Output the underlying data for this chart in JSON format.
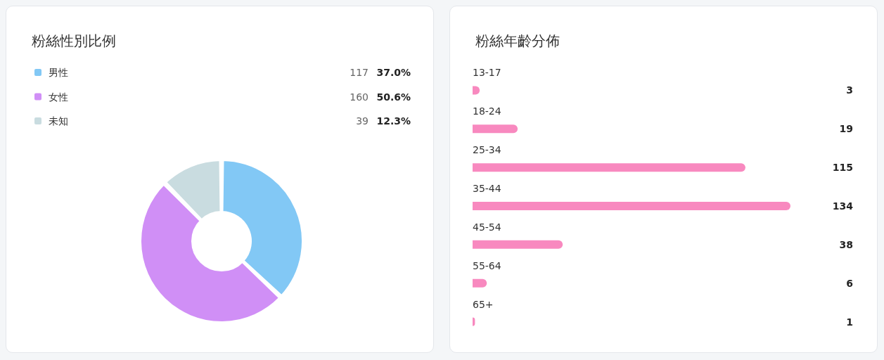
{
  "chart_data": [
    {
      "type": "donut",
      "title": "粉絲性別比例",
      "categories": [
        "男性",
        "女性",
        "未知"
      ],
      "values": [
        117,
        160,
        39
      ],
      "colors": [
        "#82c8f5",
        "#d08ff6",
        "#c9dce0"
      ],
      "data_labels": true,
      "annotations": [
        "37.0%",
        "50.6%",
        "12.3%"
      ],
      "legend": "top left"
    },
    {
      "type": "bar",
      "orientation": "horizontal",
      "title": "粉絲年齡分佈",
      "categories": [
        "13-17",
        "18-24",
        "25-34",
        "35-44",
        "45-54",
        "55-64",
        "65+"
      ],
      "values": [
        3,
        19,
        115,
        134,
        38,
        6,
        1
      ],
      "color": "#f889bf",
      "data_labels": true
    }
  ]
}
